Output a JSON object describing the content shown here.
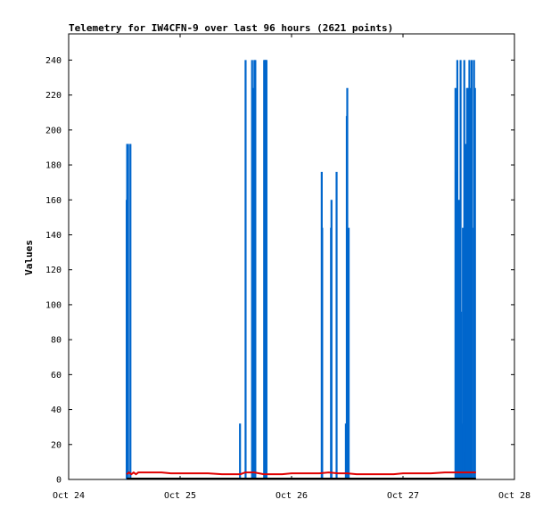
{
  "colors": {
    "series_blue": "#0066cc",
    "series_red": "#e00000",
    "series_black": "#000000",
    "axis": "#000000",
    "background": "#ffffff"
  },
  "chart_data": {
    "type": "line",
    "title": "Telemetry for IW4CFN-9 over last 96 hours (2621 points)",
    "xlabel": "",
    "ylabel": "Values",
    "xlim": [
      "Oct 24",
      "Oct 28"
    ],
    "ylim": [
      0,
      255
    ],
    "x_ticks": [
      "Oct 24",
      "Oct 25",
      "Oct 26",
      "Oct 27",
      "Oct 28"
    ],
    "y_ticks": [
      0,
      20,
      40,
      60,
      80,
      100,
      120,
      140,
      160,
      180,
      200,
      220,
      240
    ],
    "grid": false,
    "series": [
      {
        "color": "#0066cc",
        "style": "spikes",
        "x_hours": [
          12.5,
          12.6,
          12.7,
          12.8,
          12.9,
          13.3,
          36.9,
          38.1,
          39.5,
          39.6,
          39.7,
          39.8,
          39.9,
          40.0,
          40.1,
          40.2,
          40.3,
          40.4,
          42.1,
          42.2,
          42.3,
          42.4,
          42.5,
          42.6,
          54.5,
          54.6,
          56.5,
          56.6,
          57.7,
          59.7,
          59.8,
          59.9,
          60.0,
          60.1,
          60.2,
          60.3,
          60.4,
          60.5,
          60.6,
          60.7,
          83.3,
          83.4,
          83.5,
          83.6,
          83.7,
          83.8,
          84.0,
          84.2,
          84.4,
          84.5,
          84.7,
          84.9,
          85.0,
          85.2,
          85.3,
          85.4,
          85.5,
          85.7,
          85.8,
          85.9,
          86.0,
          86.2,
          86.3,
          86.4,
          86.5,
          86.7,
          86.8,
          86.9,
          87.0,
          87.1,
          87.3,
          87.5,
          87.7
        ],
        "values": [
          160,
          192,
          80,
          192,
          0,
          192,
          32,
          240,
          240,
          200,
          176,
          224,
          160,
          240,
          208,
          240,
          0,
          0,
          240,
          240,
          240,
          240,
          240,
          240,
          176,
          144,
          144,
          160,
          176,
          32,
          16,
          208,
          224,
          48,
          16,
          144,
          0,
          0,
          0,
          0,
          224,
          176,
          96,
          112,
          240,
          64,
          160,
          144,
          240,
          96,
          32,
          144,
          32,
          240,
          16,
          112,
          192,
          96,
          224,
          176,
          224,
          16,
          240,
          16,
          224,
          16,
          240,
          144,
          0,
          0,
          240,
          224,
          0
        ]
      },
      {
        "color": "#e00000",
        "style": "line",
        "x_hours": [
          12.5,
          13.0,
          13.5,
          14.0,
          14.5,
          15.0,
          16.0,
          18.0,
          20.0,
          22.0,
          24.0,
          27.0,
          30.0,
          33.0,
          36.0,
          37.0,
          38.0,
          39.0,
          40.0,
          41.0,
          42.0,
          43.0,
          44.0,
          46.0,
          48.0,
          50.0,
          52.0,
          54.0,
          56.0,
          58.0,
          60.0,
          62.0,
          64.0,
          66.0,
          68.0,
          70.0,
          72.0,
          75.0,
          78.0,
          81.0,
          84.0,
          86.0,
          87.7
        ],
        "values": [
          3,
          4,
          3,
          4,
          3,
          4,
          4,
          4,
          4,
          3.5,
          3.5,
          3.5,
          3.5,
          3,
          3,
          3,
          4,
          4,
          4,
          3.5,
          3,
          3,
          3,
          3,
          3.5,
          3.5,
          3.5,
          3.5,
          4,
          3.5,
          3.5,
          3,
          3,
          3,
          3,
          3,
          3.5,
          3.5,
          3.5,
          4,
          4,
          4,
          4
        ]
      },
      {
        "color": "#000000",
        "style": "line",
        "x_hours": [
          12.5,
          87.7
        ],
        "values": [
          0.5,
          0.5
        ]
      }
    ]
  }
}
